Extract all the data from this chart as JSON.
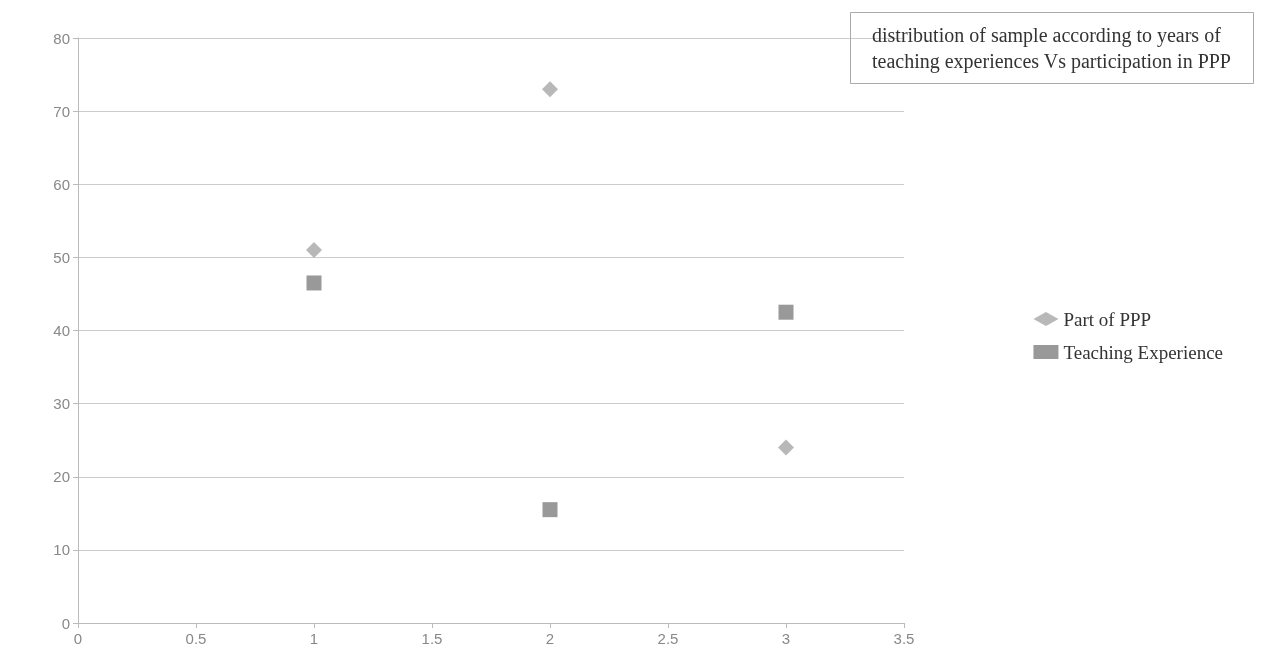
{
  "chart_data": {
    "type": "scatter",
    "title": "distribution of sample according to years of teaching experiences Vs participation in PPP",
    "series": [
      {
        "name": "Part of PPP",
        "color": "#a6a6a6",
        "marker": "diamond",
        "x": [
          1,
          2,
          3
        ],
        "values": [
          51,
          73,
          24
        ]
      },
      {
        "name": "Teaching Experience",
        "color": "#7f7f7f",
        "marker": "square",
        "x": [
          1,
          2,
          3
        ],
        "values": [
          46.5,
          15.5,
          42.5
        ]
      }
    ],
    "xlim": [
      0,
      3.5
    ],
    "xticks": [
      0,
      0.5,
      1,
      1.5,
      2,
      2.5,
      3,
      3.5
    ],
    "ylim": [
      0,
      80
    ],
    "yticks": [
      0,
      10,
      20,
      30,
      40,
      50,
      60,
      70,
      80
    ],
    "grid": "y",
    "legend": "right"
  }
}
